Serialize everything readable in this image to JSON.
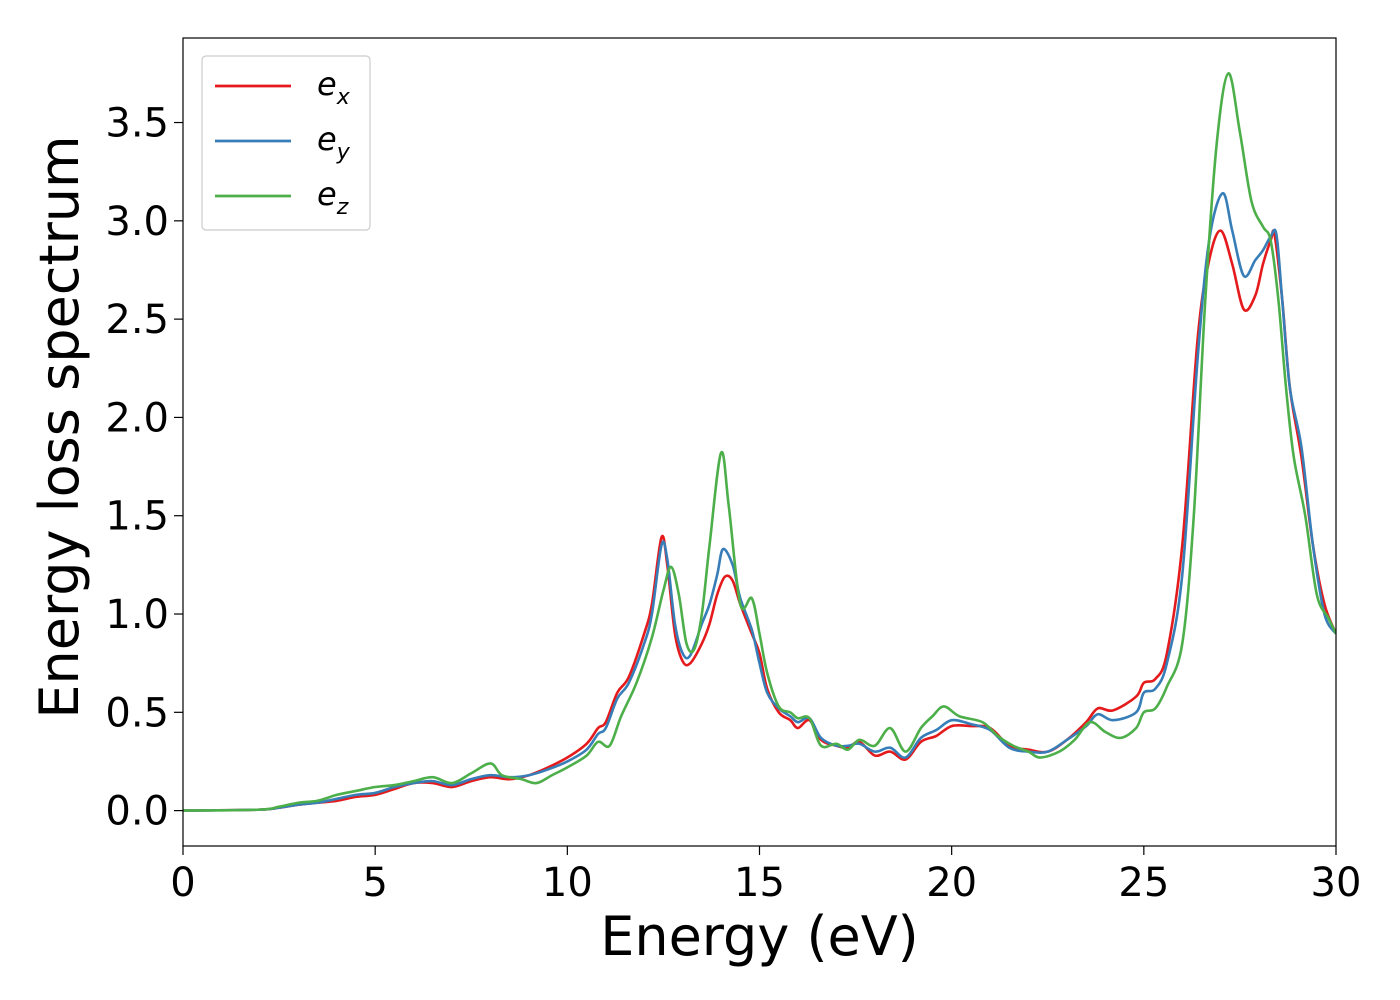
{
  "chart_data": {
    "type": "line",
    "title": "",
    "xlabel": "Energy (eV)",
    "ylabel": "Energy loss spectrum",
    "xlim": [
      0,
      30
    ],
    "ylim": [
      -0.18,
      3.93
    ],
    "xticks": [
      0,
      5,
      10,
      15,
      20,
      25,
      30
    ],
    "xtick_labels": [
      "0",
      "5",
      "10",
      "15",
      "20",
      "25",
      "30"
    ],
    "yticks": [
      0.0,
      0.5,
      1.0,
      1.5,
      2.0,
      2.5,
      3.0,
      3.5
    ],
    "ytick_labels": [
      "0.0",
      "0.5",
      "1.0",
      "1.5",
      "2.0",
      "2.5",
      "3.0",
      "3.5"
    ],
    "grid": false,
    "legend_position": "top-left",
    "series": [
      {
        "name": "e_x",
        "legend_base": "e",
        "legend_sub": "x",
        "color": "#e41a1c",
        "points": [
          [
            0,
            0
          ],
          [
            2,
            0.005
          ],
          [
            2.5,
            0.015
          ],
          [
            3,
            0.03
          ],
          [
            3.5,
            0.04
          ],
          [
            4,
            0.05
          ],
          [
            4.5,
            0.07
          ],
          [
            5,
            0.08
          ],
          [
            5.5,
            0.11
          ],
          [
            6,
            0.14
          ],
          [
            6.5,
            0.14
          ],
          [
            7,
            0.12
          ],
          [
            7.5,
            0.15
          ],
          [
            8,
            0.17
          ],
          [
            8.5,
            0.16
          ],
          [
            9,
            0.18
          ],
          [
            9.5,
            0.22
          ],
          [
            10,
            0.27
          ],
          [
            10.5,
            0.34
          ],
          [
            10.8,
            0.42
          ],
          [
            11,
            0.45
          ],
          [
            11.3,
            0.6
          ],
          [
            11.6,
            0.68
          ],
          [
            12,
            0.9
          ],
          [
            12.2,
            1.05
          ],
          [
            12.45,
            1.39
          ],
          [
            12.6,
            1.25
          ],
          [
            12.8,
            0.9
          ],
          [
            13,
            0.76
          ],
          [
            13.2,
            0.75
          ],
          [
            13.5,
            0.85
          ],
          [
            13.7,
            0.95
          ],
          [
            13.9,
            1.1
          ],
          [
            14.1,
            1.19
          ],
          [
            14.3,
            1.17
          ],
          [
            14.5,
            1.05
          ],
          [
            14.8,
            0.9
          ],
          [
            15,
            0.8
          ],
          [
            15.2,
            0.62
          ],
          [
            15.5,
            0.5
          ],
          [
            15.8,
            0.46
          ],
          [
            16,
            0.42
          ],
          [
            16.3,
            0.46
          ],
          [
            16.6,
            0.36
          ],
          [
            17,
            0.33
          ],
          [
            17.3,
            0.32
          ],
          [
            17.6,
            0.35
          ],
          [
            18,
            0.28
          ],
          [
            18.4,
            0.3
          ],
          [
            18.8,
            0.26
          ],
          [
            19.2,
            0.35
          ],
          [
            19.6,
            0.38
          ],
          [
            20,
            0.43
          ],
          [
            20.5,
            0.43
          ],
          [
            21,
            0.42
          ],
          [
            21.5,
            0.33
          ],
          [
            22,
            0.31
          ],
          [
            22.5,
            0.3
          ],
          [
            23,
            0.36
          ],
          [
            23.5,
            0.45
          ],
          [
            23.8,
            0.52
          ],
          [
            24.2,
            0.51
          ],
          [
            24.8,
            0.58
          ],
          [
            25,
            0.65
          ],
          [
            25.3,
            0.67
          ],
          [
            25.6,
            0.8
          ],
          [
            26,
            1.35
          ],
          [
            26.4,
            2.4
          ],
          [
            26.7,
            2.8
          ],
          [
            27,
            2.95
          ],
          [
            27.3,
            2.78
          ],
          [
            27.6,
            2.55
          ],
          [
            27.9,
            2.62
          ],
          [
            28.1,
            2.78
          ],
          [
            28.3,
            2.9
          ],
          [
            28.4,
            2.93
          ],
          [
            28.6,
            2.6
          ],
          [
            28.8,
            2.15
          ],
          [
            29.1,
            1.8
          ],
          [
            29.4,
            1.35
          ],
          [
            29.7,
            1.05
          ],
          [
            30,
            0.9
          ]
        ]
      },
      {
        "name": "e_y",
        "legend_base": "e",
        "legend_sub": "y",
        "color": "#377eb8",
        "points": [
          [
            0,
            0
          ],
          [
            2,
            0.005
          ],
          [
            2.5,
            0.015
          ],
          [
            3,
            0.03
          ],
          [
            3.5,
            0.04
          ],
          [
            4,
            0.06
          ],
          [
            4.5,
            0.08
          ],
          [
            5,
            0.09
          ],
          [
            5.5,
            0.12
          ],
          [
            6,
            0.14
          ],
          [
            6.5,
            0.15
          ],
          [
            7,
            0.13
          ],
          [
            7.5,
            0.16
          ],
          [
            8,
            0.18
          ],
          [
            8.5,
            0.17
          ],
          [
            9,
            0.18
          ],
          [
            9.5,
            0.21
          ],
          [
            10,
            0.25
          ],
          [
            10.5,
            0.31
          ],
          [
            10.8,
            0.39
          ],
          [
            11,
            0.42
          ],
          [
            11.3,
            0.57
          ],
          [
            11.6,
            0.65
          ],
          [
            12,
            0.85
          ],
          [
            12.2,
            1.0
          ],
          [
            12.45,
            1.35
          ],
          [
            12.6,
            1.28
          ],
          [
            12.8,
            0.95
          ],
          [
            13,
            0.8
          ],
          [
            13.2,
            0.79
          ],
          [
            13.5,
            0.95
          ],
          [
            13.7,
            1.05
          ],
          [
            13.9,
            1.2
          ],
          [
            14.05,
            1.33
          ],
          [
            14.3,
            1.25
          ],
          [
            14.5,
            1.08
          ],
          [
            14.8,
            0.92
          ],
          [
            15,
            0.75
          ],
          [
            15.2,
            0.6
          ],
          [
            15.5,
            0.52
          ],
          [
            15.8,
            0.48
          ],
          [
            16,
            0.45
          ],
          [
            16.3,
            0.47
          ],
          [
            16.6,
            0.37
          ],
          [
            17,
            0.33
          ],
          [
            17.3,
            0.33
          ],
          [
            17.6,
            0.34
          ],
          [
            18,
            0.3
          ],
          [
            18.4,
            0.32
          ],
          [
            18.8,
            0.27
          ],
          [
            19.2,
            0.37
          ],
          [
            19.6,
            0.41
          ],
          [
            20,
            0.46
          ],
          [
            20.5,
            0.44
          ],
          [
            21,
            0.41
          ],
          [
            21.5,
            0.32
          ],
          [
            22,
            0.3
          ],
          [
            22.5,
            0.3
          ],
          [
            23,
            0.36
          ],
          [
            23.5,
            0.43
          ],
          [
            23.8,
            0.49
          ],
          [
            24.2,
            0.46
          ],
          [
            24.8,
            0.5
          ],
          [
            25,
            0.6
          ],
          [
            25.3,
            0.62
          ],
          [
            25.6,
            0.75
          ],
          [
            26,
            1.2
          ],
          [
            26.4,
            2.3
          ],
          [
            26.7,
            2.9
          ],
          [
            27.05,
            3.14
          ],
          [
            27.3,
            2.95
          ],
          [
            27.6,
            2.72
          ],
          [
            27.9,
            2.8
          ],
          [
            28.1,
            2.85
          ],
          [
            28.3,
            2.92
          ],
          [
            28.45,
            2.93
          ],
          [
            28.6,
            2.6
          ],
          [
            28.8,
            2.15
          ],
          [
            29.1,
            1.85
          ],
          [
            29.4,
            1.35
          ],
          [
            29.7,
            1.0
          ],
          [
            30,
            0.9
          ]
        ]
      },
      {
        "name": "e_z",
        "legend_base": "e",
        "legend_sub": "z",
        "color": "#4daf4a",
        "points": [
          [
            0,
            0
          ],
          [
            2,
            0.005
          ],
          [
            2.5,
            0.02
          ],
          [
            3,
            0.04
          ],
          [
            3.5,
            0.05
          ],
          [
            4,
            0.08
          ],
          [
            4.5,
            0.1
          ],
          [
            5,
            0.12
          ],
          [
            5.5,
            0.13
          ],
          [
            6,
            0.15
          ],
          [
            6.5,
            0.17
          ],
          [
            7,
            0.14
          ],
          [
            7.5,
            0.19
          ],
          [
            8,
            0.24
          ],
          [
            8.3,
            0.18
          ],
          [
            8.8,
            0.16
          ],
          [
            9.2,
            0.14
          ],
          [
            9.6,
            0.18
          ],
          [
            10,
            0.22
          ],
          [
            10.5,
            0.28
          ],
          [
            10.8,
            0.35
          ],
          [
            11.1,
            0.33
          ],
          [
            11.4,
            0.48
          ],
          [
            11.8,
            0.65
          ],
          [
            12.2,
            0.88
          ],
          [
            12.5,
            1.12
          ],
          [
            12.7,
            1.24
          ],
          [
            12.9,
            1.1
          ],
          [
            13.1,
            0.85
          ],
          [
            13.3,
            0.82
          ],
          [
            13.5,
            1.0
          ],
          [
            13.7,
            1.35
          ],
          [
            14.0,
            1.82
          ],
          [
            14.2,
            1.55
          ],
          [
            14.5,
            1.05
          ],
          [
            14.8,
            1.08
          ],
          [
            15.0,
            0.9
          ],
          [
            15.2,
            0.7
          ],
          [
            15.5,
            0.53
          ],
          [
            15.8,
            0.5
          ],
          [
            16,
            0.47
          ],
          [
            16.3,
            0.47
          ],
          [
            16.6,
            0.33
          ],
          [
            17,
            0.34
          ],
          [
            17.3,
            0.31
          ],
          [
            17.6,
            0.36
          ],
          [
            18,
            0.33
          ],
          [
            18.4,
            0.42
          ],
          [
            18.8,
            0.3
          ],
          [
            19.2,
            0.42
          ],
          [
            19.5,
            0.48
          ],
          [
            19.8,
            0.53
          ],
          [
            20.2,
            0.48
          ],
          [
            20.8,
            0.45
          ],
          [
            21.2,
            0.38
          ],
          [
            21.6,
            0.33
          ],
          [
            22,
            0.3
          ],
          [
            22.3,
            0.27
          ],
          [
            22.8,
            0.3
          ],
          [
            23.2,
            0.36
          ],
          [
            23.6,
            0.45
          ],
          [
            24,
            0.4
          ],
          [
            24.4,
            0.37
          ],
          [
            24.8,
            0.42
          ],
          [
            25,
            0.5
          ],
          [
            25.3,
            0.52
          ],
          [
            25.6,
            0.63
          ],
          [
            26,
            0.85
          ],
          [
            26.3,
            1.5
          ],
          [
            26.6,
            2.6
          ],
          [
            26.9,
            3.4
          ],
          [
            27.2,
            3.75
          ],
          [
            27.5,
            3.45
          ],
          [
            27.8,
            3.1
          ],
          [
            28.1,
            2.97
          ],
          [
            28.3,
            2.9
          ],
          [
            28.5,
            2.6
          ],
          [
            28.7,
            2.15
          ],
          [
            28.9,
            1.8
          ],
          [
            29.2,
            1.5
          ],
          [
            29.5,
            1.1
          ],
          [
            29.8,
            0.98
          ],
          [
            30,
            0.9
          ]
        ]
      }
    ]
  }
}
